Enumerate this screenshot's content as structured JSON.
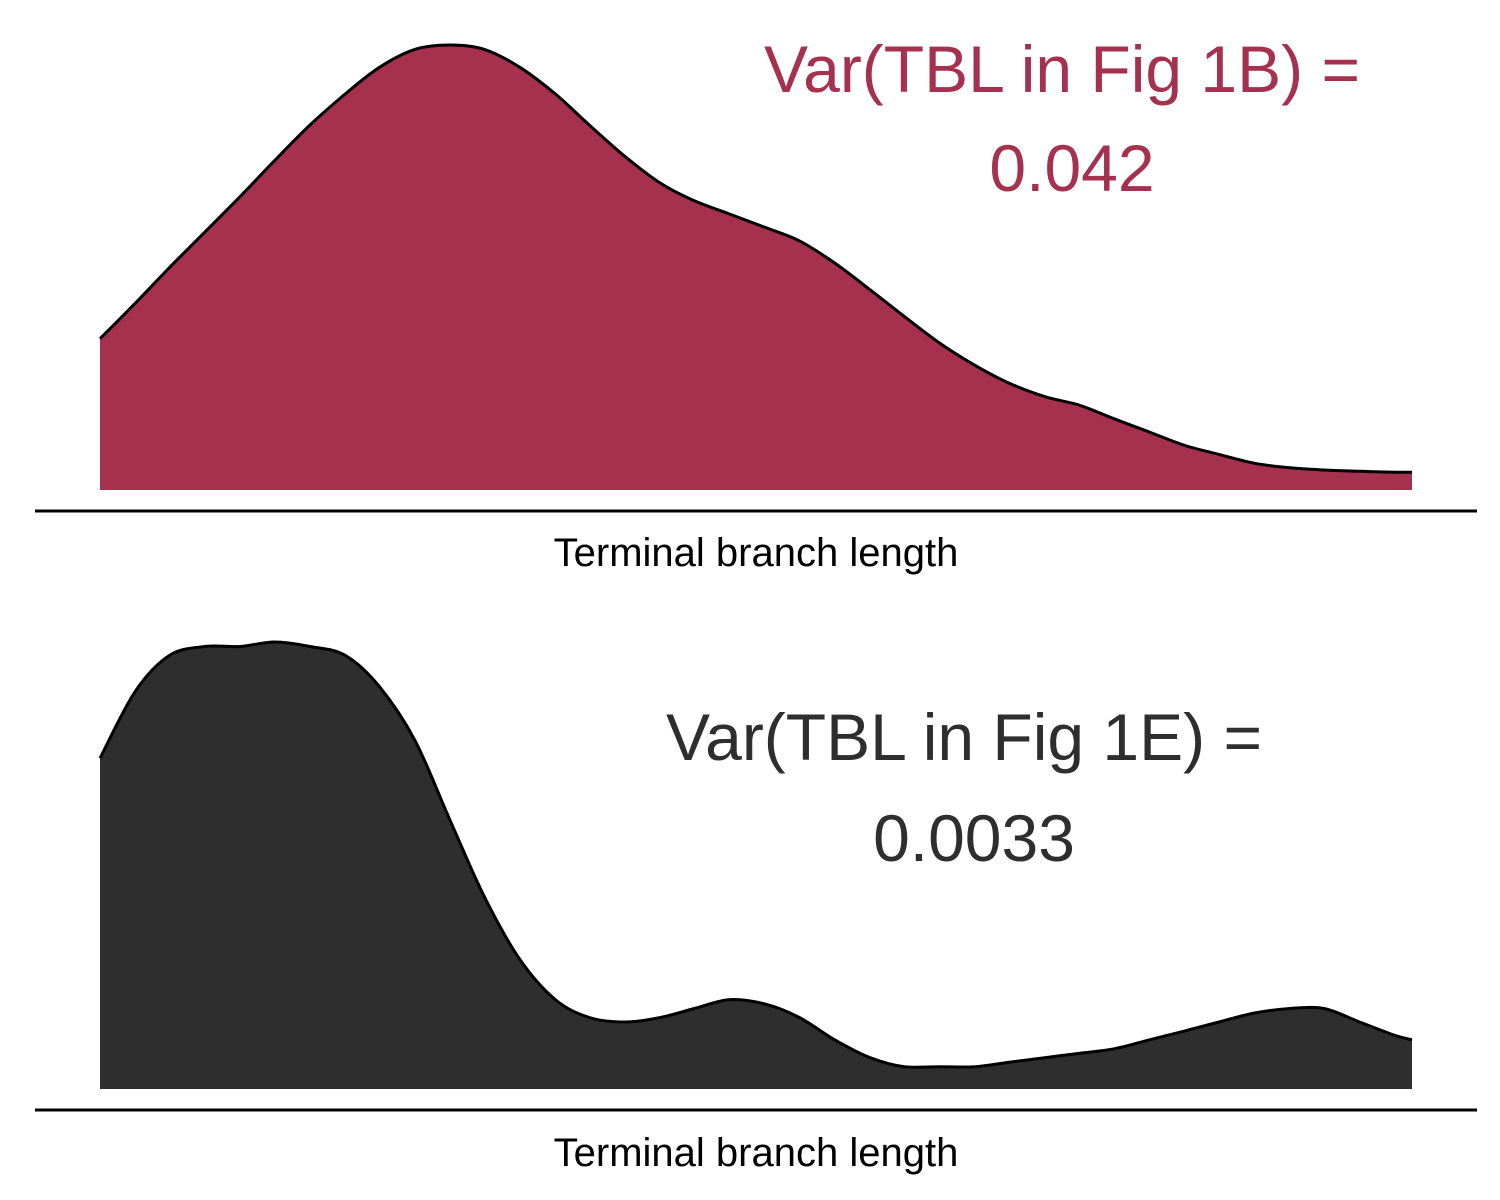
{
  "colors": {
    "top_fill": "#a5314e",
    "bottom_fill": "#2e2e2e",
    "outline": "#000000",
    "axis": "#000000"
  },
  "chart_data": [
    {
      "type": "area",
      "xlabel": "Terminal branch length",
      "annotation": [
        "Var(TBL in Fig 1B) =",
        "0.042"
      ],
      "annotation_color": "#a5314e",
      "fill_color": "#a5314e",
      "grid": false,
      "legend": "none",
      "xlim": [
        0,
        1
      ],
      "ylim": [
        0,
        1
      ],
      "x": [
        0,
        0.027,
        0.053,
        0.08,
        0.107,
        0.133,
        0.16,
        0.187,
        0.213,
        0.24,
        0.267,
        0.293,
        0.32,
        0.347,
        0.373,
        0.4,
        0.427,
        0.453,
        0.48,
        0.507,
        0.533,
        0.56,
        0.587,
        0.613,
        0.64,
        0.667,
        0.693,
        0.72,
        0.747,
        0.773,
        0.8,
        0.827,
        0.853,
        0.88,
        0.907,
        0.933,
        0.96,
        0.987,
        1.0
      ],
      "y": [
        0.34,
        0.42,
        0.5,
        0.58,
        0.66,
        0.74,
        0.82,
        0.89,
        0.95,
        0.99,
        1.0,
        0.99,
        0.95,
        0.89,
        0.82,
        0.75,
        0.69,
        0.65,
        0.62,
        0.59,
        0.56,
        0.51,
        0.45,
        0.39,
        0.33,
        0.28,
        0.24,
        0.21,
        0.19,
        0.16,
        0.13,
        0.1,
        0.08,
        0.06,
        0.05,
        0.045,
        0.042,
        0.04,
        0.04
      ]
    },
    {
      "type": "area",
      "xlabel": "Terminal branch length",
      "annotation": [
        "Var(TBL in Fig 1E) =",
        "0.0033"
      ],
      "annotation_color": "#2e2e2e",
      "fill_color": "#2e2e2e",
      "grid": false,
      "legend": "none",
      "xlim": [
        0,
        1
      ],
      "ylim": [
        0,
        1
      ],
      "x": [
        0,
        0.027,
        0.053,
        0.08,
        0.107,
        0.133,
        0.16,
        0.187,
        0.213,
        0.24,
        0.267,
        0.293,
        0.32,
        0.347,
        0.373,
        0.4,
        0.427,
        0.453,
        0.48,
        0.507,
        0.533,
        0.56,
        0.587,
        0.613,
        0.64,
        0.667,
        0.693,
        0.72,
        0.747,
        0.773,
        0.8,
        0.827,
        0.853,
        0.88,
        0.907,
        0.933,
        0.96,
        0.987,
        1.0
      ],
      "y": [
        0.74,
        0.89,
        0.97,
        0.99,
        0.99,
        1.0,
        0.99,
        0.97,
        0.9,
        0.78,
        0.6,
        0.43,
        0.29,
        0.2,
        0.16,
        0.15,
        0.16,
        0.18,
        0.2,
        0.19,
        0.16,
        0.11,
        0.07,
        0.05,
        0.05,
        0.05,
        0.06,
        0.07,
        0.08,
        0.09,
        0.11,
        0.13,
        0.15,
        0.17,
        0.18,
        0.18,
        0.15,
        0.12,
        0.11
      ]
    }
  ]
}
